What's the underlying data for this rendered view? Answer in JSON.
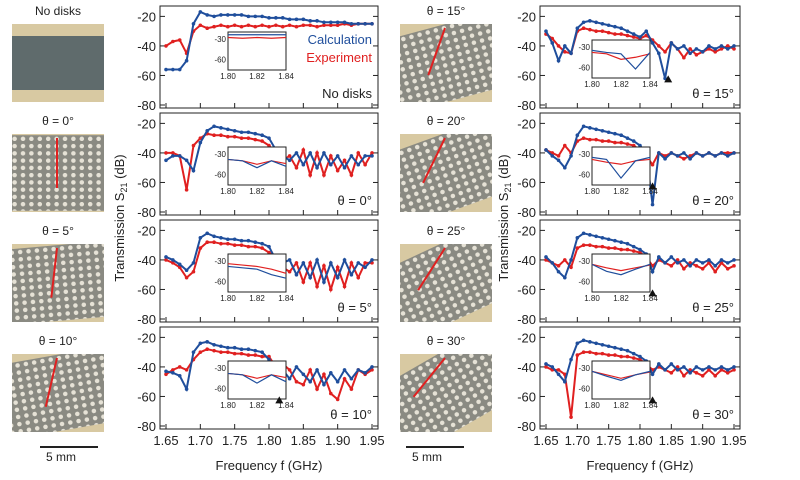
{
  "samples": [
    {
      "label": "No disks",
      "angle": null
    },
    {
      "label": "θ = 0°",
      "angle": 0
    },
    {
      "label": "θ = 5°",
      "angle": 5
    },
    {
      "label": "θ = 10°",
      "angle": 10
    },
    {
      "label": "θ = 15°",
      "angle": 15
    },
    {
      "label": "θ = 20°",
      "angle": 20
    },
    {
      "label": "θ = 25°",
      "angle": 25
    },
    {
      "label": "θ = 30°",
      "angle": 30
    }
  ],
  "scale_bar": "5 mm",
  "colors": {
    "calculation": "#1f4e9c",
    "experiment": "#e02020"
  },
  "chart_data": {
    "type": "line",
    "xlabel": "Frequency f (GHz)",
    "ylabel": "Transmission S",
    "ylabel_sub": "21",
    "ylabel_unit": " (dB)",
    "xlim": [
      1.65,
      1.95
    ],
    "ylim": [
      -80,
      -15
    ],
    "xticks": [
      "1.65",
      "1.70",
      "1.75",
      "1.80",
      "1.85",
      "1.90",
      "1.95"
    ],
    "yticks": [
      "-20",
      "-40",
      "-60",
      "-80"
    ],
    "legend": [
      "Calculation",
      "Experiment"
    ],
    "x": [
      1.65,
      1.66,
      1.67,
      1.68,
      1.69,
      1.7,
      1.71,
      1.72,
      1.73,
      1.74,
      1.75,
      1.76,
      1.77,
      1.78,
      1.79,
      1.8,
      1.81,
      1.82,
      1.83,
      1.84,
      1.85,
      1.86,
      1.87,
      1.88,
      1.89,
      1.9,
      1.91,
      1.92,
      1.93,
      1.94,
      1.95
    ],
    "inset": {
      "xticks": [
        "1.80",
        "1.82",
        "1.84"
      ],
      "yticks": [
        "-30",
        "-60"
      ],
      "xlim": [
        1.8,
        1.84
      ],
      "ylim": [
        -75,
        -20
      ]
    },
    "panels": [
      {
        "label": "No disks",
        "marker": null,
        "calculation": [
          -56,
          -56,
          -56,
          -50,
          -25,
          -17,
          -19,
          -20,
          -19,
          -19,
          -19,
          -19,
          -20,
          -20,
          -20,
          -21,
          -21,
          -21,
          -22,
          -22,
          -22,
          -23,
          -23,
          -24,
          -24,
          -24,
          -24,
          -25,
          -25,
          -25,
          -25
        ],
        "experiment": [
          -40,
          -37,
          -36,
          -45,
          -30,
          -26,
          -28,
          -27,
          -26,
          -27,
          -26,
          -27,
          -26,
          -27,
          -26,
          -27,
          -26,
          -27,
          -26,
          -27,
          -26,
          -26,
          -27,
          -26,
          -26,
          -26,
          -25,
          -26,
          -25,
          -25,
          -25
        ],
        "inset_calculation": [
          -24,
          -24,
          -24,
          -24,
          -24
        ],
        "inset_experiment": [
          -28,
          -29,
          -28,
          -29,
          -28
        ]
      },
      {
        "label": "θ = 0°",
        "marker": null,
        "calculation": [
          -45,
          -42,
          -42,
          -45,
          -52,
          -33,
          -25,
          -22,
          -23,
          -24,
          -25,
          -26,
          -26,
          -27,
          -28,
          -30,
          -38,
          -42,
          -45,
          -40,
          -48,
          -40,
          -50,
          -40,
          -48,
          -42,
          -50,
          -42,
          -48,
          -42,
          -42
        ],
        "experiment": [
          -40,
          -40,
          -42,
          -65,
          -35,
          -30,
          -27,
          -28,
          -28,
          -29,
          -29,
          -30,
          -30,
          -31,
          -32,
          -35,
          -40,
          -45,
          -42,
          -50,
          -38,
          -55,
          -40,
          -55,
          -42,
          -52,
          -45,
          -55,
          -40,
          -48,
          -40
        ],
        "inset_calculation": [
          -38,
          -40,
          -50,
          -40,
          -48
        ],
        "inset_experiment": [
          -38,
          -40,
          -45,
          -40,
          -44
        ]
      },
      {
        "label": "θ = 5°",
        "marker": null,
        "calculation": [
          -38,
          -40,
          -43,
          -47,
          -42,
          -25,
          -22,
          -24,
          -25,
          -26,
          -26,
          -27,
          -27,
          -28,
          -29,
          -31,
          -40,
          -42,
          -40,
          -50,
          -42,
          -52,
          -40,
          -55,
          -42,
          -52,
          -40,
          -50,
          -42,
          -45,
          -40
        ],
        "experiment": [
          -40,
          -42,
          -45,
          -52,
          -48,
          -32,
          -28,
          -28,
          -29,
          -29,
          -30,
          -30,
          -31,
          -31,
          -32,
          -35,
          -38,
          -45,
          -48,
          -42,
          -55,
          -42,
          -58,
          -44,
          -60,
          -45,
          -58,
          -42,
          -52,
          -42,
          -42
        ],
        "inset_calculation": [
          -38,
          -40,
          -42,
          -50,
          -55
        ],
        "inset_experiment": [
          -34,
          -36,
          -38,
          -42,
          -48
        ]
      },
      {
        "label": "θ = 10°",
        "marker": 1.815,
        "calculation": [
          -43,
          -44,
          -46,
          -55,
          -30,
          -24,
          -23,
          -25,
          -26,
          -27,
          -27,
          -28,
          -28,
          -29,
          -30,
          -35,
          -50,
          -42,
          -48,
          -40,
          -45,
          -50,
          -42,
          -52,
          -44,
          -50,
          -42,
          -48,
          -42,
          -44,
          -40
        ],
        "experiment": [
          -45,
          -42,
          -40,
          -42,
          -35,
          -30,
          -28,
          -29,
          -30,
          -30,
          -31,
          -31,
          -32,
          -32,
          -33,
          -33,
          -40,
          -38,
          -42,
          -50,
          -52,
          -42,
          -55,
          -45,
          -58,
          -62,
          -48,
          -55,
          -42,
          -45,
          -42
        ],
        "inset_calculation": [
          -38,
          -40,
          -52,
          -40,
          -50
        ],
        "inset_experiment": [
          -38,
          -40,
          -45,
          -40,
          -44
        ]
      },
      {
        "label": "θ = 15°",
        "marker": 1.845,
        "calculation": [
          -30,
          -38,
          -50,
          -40,
          -45,
          -28,
          -24,
          -23,
          -24,
          -25,
          -26,
          -27,
          -28,
          -30,
          -32,
          -34,
          -30,
          -38,
          -45,
          -62,
          -38,
          -42,
          -40,
          -45,
          -42,
          -44,
          -40,
          -42,
          -40,
          -42,
          -40
        ],
        "experiment": [
          -32,
          -35,
          -40,
          -44,
          -45,
          -30,
          -28,
          -29,
          -30,
          -30,
          -31,
          -32,
          -32,
          -33,
          -34,
          -35,
          -33,
          -36,
          -40,
          -44,
          -38,
          -42,
          -48,
          -42,
          -46,
          -44,
          -42,
          -44,
          -42,
          -40,
          -42
        ],
        "inset_calculation": [
          -35,
          -38,
          -40,
          -62,
          -38
        ],
        "inset_experiment": [
          -38,
          -40,
          -48,
          -45,
          -40
        ]
      },
      {
        "label": "θ = 20°",
        "marker": 1.82,
        "calculation": [
          -38,
          -42,
          -45,
          -50,
          -42,
          -28,
          -22,
          -23,
          -24,
          -25,
          -26,
          -27,
          -28,
          -30,
          -32,
          -35,
          -40,
          -75,
          -40,
          -44,
          -40,
          -42,
          -40,
          -44,
          -40,
          -42,
          -40,
          -42,
          -40,
          -42,
          -40
        ],
        "experiment": [
          -38,
          -40,
          -42,
          -35,
          -40,
          -32,
          -30,
          -31,
          -31,
          -32,
          -32,
          -33,
          -33,
          -34,
          -35,
          -38,
          -42,
          -48,
          -40,
          -42,
          -40,
          -42,
          -44,
          -42,
          -40,
          -42,
          -40,
          -42,
          -40,
          -40,
          -40
        ],
        "inset_calculation": [
          -35,
          -38,
          -65,
          -40,
          -35
        ],
        "inset_experiment": [
          -38,
          -42,
          -45,
          -40,
          -38
        ]
      },
      {
        "label": "θ = 25°",
        "marker": 1.82,
        "calculation": [
          -38,
          -42,
          -48,
          -52,
          -40,
          -25,
          -22,
          -23,
          -24,
          -25,
          -26,
          -27,
          -28,
          -29,
          -31,
          -33,
          -36,
          -48,
          -38,
          -42,
          -38,
          -42,
          -40,
          -44,
          -40,
          -42,
          -40,
          -44,
          -40,
          -42,
          -40
        ],
        "experiment": [
          -40,
          -42,
          -44,
          -40,
          -45,
          -32,
          -30,
          -30,
          -31,
          -31,
          -32,
          -32,
          -33,
          -33,
          -34,
          -35,
          -38,
          -44,
          -40,
          -42,
          -44,
          -40,
          -46,
          -42,
          -44,
          -46,
          -42,
          -48,
          -42,
          -46,
          -44
        ],
        "inset_calculation": [
          -35,
          -45,
          -50,
          -42,
          -35
        ],
        "inset_experiment": [
          -35,
          -40,
          -44,
          -40,
          -36
        ]
      },
      {
        "label": "θ = 30°",
        "marker": 1.82,
        "calculation": [
          -38,
          -40,
          -45,
          -50,
          -35,
          -24,
          -22,
          -23,
          -24,
          -25,
          -26,
          -27,
          -28,
          -29,
          -31,
          -33,
          -36,
          -45,
          -38,
          -42,
          -38,
          -42,
          -40,
          -44,
          -40,
          -42,
          -40,
          -42,
          -40,
          -42,
          -40
        ],
        "experiment": [
          -40,
          -42,
          -42,
          -45,
          -74,
          -32,
          -30,
          -30,
          -31,
          -31,
          -32,
          -32,
          -33,
          -33,
          -34,
          -35,
          -38,
          -42,
          -40,
          -42,
          -44,
          -40,
          -46,
          -42,
          -44,
          -46,
          -42,
          -46,
          -42,
          -44,
          -42
        ],
        "inset_calculation": [
          -35,
          -42,
          -48,
          -40,
          -35
        ],
        "inset_experiment": [
          -35,
          -40,
          -45,
          -40,
          -36
        ]
      }
    ]
  }
}
